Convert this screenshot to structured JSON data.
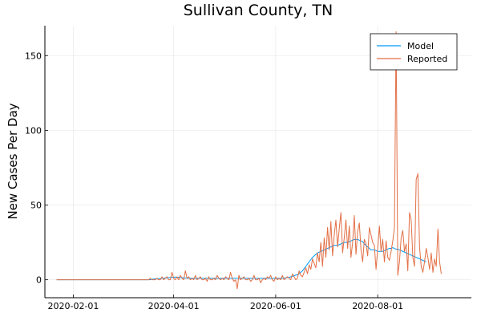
{
  "chart_data": {
    "type": "line",
    "title": "Sullivan County, TN",
    "xlabel": "",
    "ylabel": "New Cases Per Day",
    "x_start": "2020-01-22",
    "x_end": "2020-09-19",
    "xlim": [
      "2020-01-15",
      "2020-09-26"
    ],
    "ylim": [
      -12,
      170
    ],
    "grid": true,
    "legend_position": "top-right",
    "x_ticks": [
      "2020-02-01",
      "2020-04-01",
      "2020-06-01",
      "2020-08-01"
    ],
    "y_ticks": [
      0,
      50,
      100,
      150
    ],
    "series": [
      {
        "name": "Model",
        "color": "#009AF9",
        "values": [
          0,
          0,
          0,
          0,
          0,
          0,
          0,
          0,
          0,
          0,
          0,
          0,
          0,
          0,
          0,
          0,
          0,
          0,
          0,
          0,
          0,
          0,
          0,
          0,
          0,
          0,
          0,
          0,
          0,
          0,
          0,
          0,
          0,
          0,
          0,
          0,
          0,
          0,
          0,
          0,
          0,
          0,
          0,
          0,
          0,
          0,
          0,
          0,
          0,
          0,
          0,
          0,
          0,
          0,
          0,
          0,
          0.1,
          0.3,
          0.5,
          0.6,
          0.7,
          0.8,
          0.9,
          1.0,
          1.1,
          1.2,
          1.3,
          1.4,
          1.5,
          1.6,
          1.7,
          1.8,
          1.7,
          1.6,
          1.5,
          1.4,
          1.3,
          1.2,
          1.1,
          1.0,
          1.0,
          1.0,
          1.0,
          1.0,
          1.0,
          1.0,
          1.0,
          1.0,
          1.0,
          1.0,
          1.0,
          1.0,
          1.0,
          1.0,
          1.0,
          1.0,
          1.0,
          1.0,
          1.0,
          1.0,
          1.0,
          1.0,
          1.0,
          1.0,
          1.0,
          1.0,
          1.0,
          1.0,
          1.0,
          1.0,
          1.0,
          1.0,
          1.0,
          1.0,
          1.0,
          1.0,
          1.0,
          1.0,
          1.0,
          1.0,
          1.0,
          1.0,
          1.0,
          1.0,
          1.0,
          1.0,
          1.0,
          1.0,
          1.0,
          1.0,
          1.0,
          1.0,
          1.0,
          1.0,
          1.0,
          1.1,
          1.2,
          1.3,
          1.5,
          1.7,
          2.0,
          2.3,
          2.7,
          3.1,
          3.5,
          4.0,
          5,
          6,
          7.5,
          9,
          10.5,
          12,
          13.5,
          15,
          16,
          17,
          18,
          18.5,
          19,
          19.5,
          20,
          20.5,
          21,
          21.5,
          22,
          22.5,
          23,
          23,
          23,
          23.5,
          24,
          24.5,
          25,
          25,
          25,
          25.5,
          26,
          26.5,
          27,
          27,
          27,
          26.5,
          26,
          25.5,
          24,
          23,
          22,
          21,
          20,
          20,
          20,
          19.5,
          19,
          19,
          19,
          19,
          19.5,
          20,
          20.5,
          21,
          21,
          21.5,
          21,
          20.5,
          20.5,
          20,
          19.5,
          19,
          18.5,
          18,
          17.5,
          17,
          16.5,
          16,
          15.5,
          15,
          14.5,
          14,
          13.5,
          13,
          12.5,
          12
        ]
      },
      {
        "name": "Reported",
        "color": "#E26F46",
        "values": [
          0,
          0,
          0,
          0,
          0,
          0,
          0,
          0,
          0,
          0,
          0,
          0,
          0,
          0,
          0,
          0,
          0,
          0,
          0,
          0,
          0,
          0,
          0,
          0,
          0,
          0,
          0,
          0,
          0,
          0,
          0,
          0,
          0,
          0,
          0,
          0,
          0,
          0,
          0,
          0,
          0,
          0,
          0,
          0,
          0,
          0,
          0,
          0,
          0,
          0,
          0,
          0,
          0,
          0,
          0,
          0,
          1,
          0,
          0,
          0,
          1,
          0,
          0,
          2,
          0,
          1,
          2,
          0,
          0,
          5,
          1,
          0,
          2,
          0,
          3,
          1,
          0,
          6,
          1,
          2,
          0,
          1,
          0,
          3,
          0,
          1,
          2,
          0,
          0,
          1,
          -1,
          2,
          0,
          0,
          1,
          0,
          3,
          1,
          0,
          1,
          0,
          2,
          1,
          0,
          5,
          1,
          -1,
          0,
          -6,
          3,
          0,
          1,
          2,
          0,
          0,
          1,
          -1,
          0,
          3,
          0,
          0,
          1,
          -2,
          0,
          1,
          0,
          2,
          1,
          3,
          0,
          -1,
          2,
          0,
          1,
          0,
          3,
          0,
          1,
          2,
          1,
          0,
          4,
          2,
          0,
          1,
          6,
          3,
          2,
          5,
          8,
          4,
          10,
          7,
          14,
          11,
          8,
          18,
          12,
          25,
          9,
          28,
          15,
          35,
          20,
          39,
          16,
          30,
          40,
          22,
          34,
          45,
          18,
          28,
          40,
          21,
          36,
          15,
          25,
          43,
          17,
          32,
          38,
          20,
          12,
          27,
          24,
          16,
          35,
          30,
          25,
          23,
          7,
          21,
          36,
          19,
          27,
          12,
          26,
          15,
          13,
          19,
          26,
          35,
          166,
          3,
          12,
          28,
          33,
          19,
          24,
          6,
          45,
          40,
          15,
          9,
          67,
          71,
          22,
          9,
          5,
          12,
          21,
          15,
          7,
          18,
          5,
          14,
          9,
          34,
          12,
          4
        ]
      }
    ]
  }
}
